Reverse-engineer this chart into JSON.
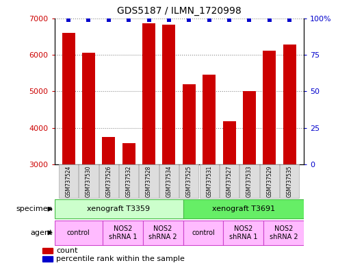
{
  "title": "GDS5187 / ILMN_1720998",
  "samples": [
    "GSM737524",
    "GSM737530",
    "GSM737526",
    "GSM737532",
    "GSM737528",
    "GSM737534",
    "GSM737525",
    "GSM737531",
    "GSM737527",
    "GSM737533",
    "GSM737529",
    "GSM737535"
  ],
  "counts": [
    6600,
    6050,
    3760,
    3580,
    6870,
    6820,
    5200,
    5460,
    4180,
    5000,
    6120,
    6280
  ],
  "bar_color": "#cc0000",
  "dot_color": "#0000cc",
  "ylim_left": [
    3000,
    7000
  ],
  "ylim_right": [
    0,
    100
  ],
  "yticks_left": [
    3000,
    4000,
    5000,
    6000,
    7000
  ],
  "yticks_right": [
    0,
    25,
    50,
    75,
    100
  ],
  "specimen_color_1": "#ccffcc",
  "specimen_color_2": "#66ee66",
  "specimen_edge_color": "#44bb44",
  "agent_color": "#ffbbff",
  "agent_edge_color": "#cc44cc",
  "sample_box_color": "#dddddd",
  "sample_box_edge": "#aaaaaa",
  "background_color": "#ffffff",
  "grid_color": "#888888",
  "legend_count_color": "#cc0000",
  "legend_dot_color": "#0000cc"
}
